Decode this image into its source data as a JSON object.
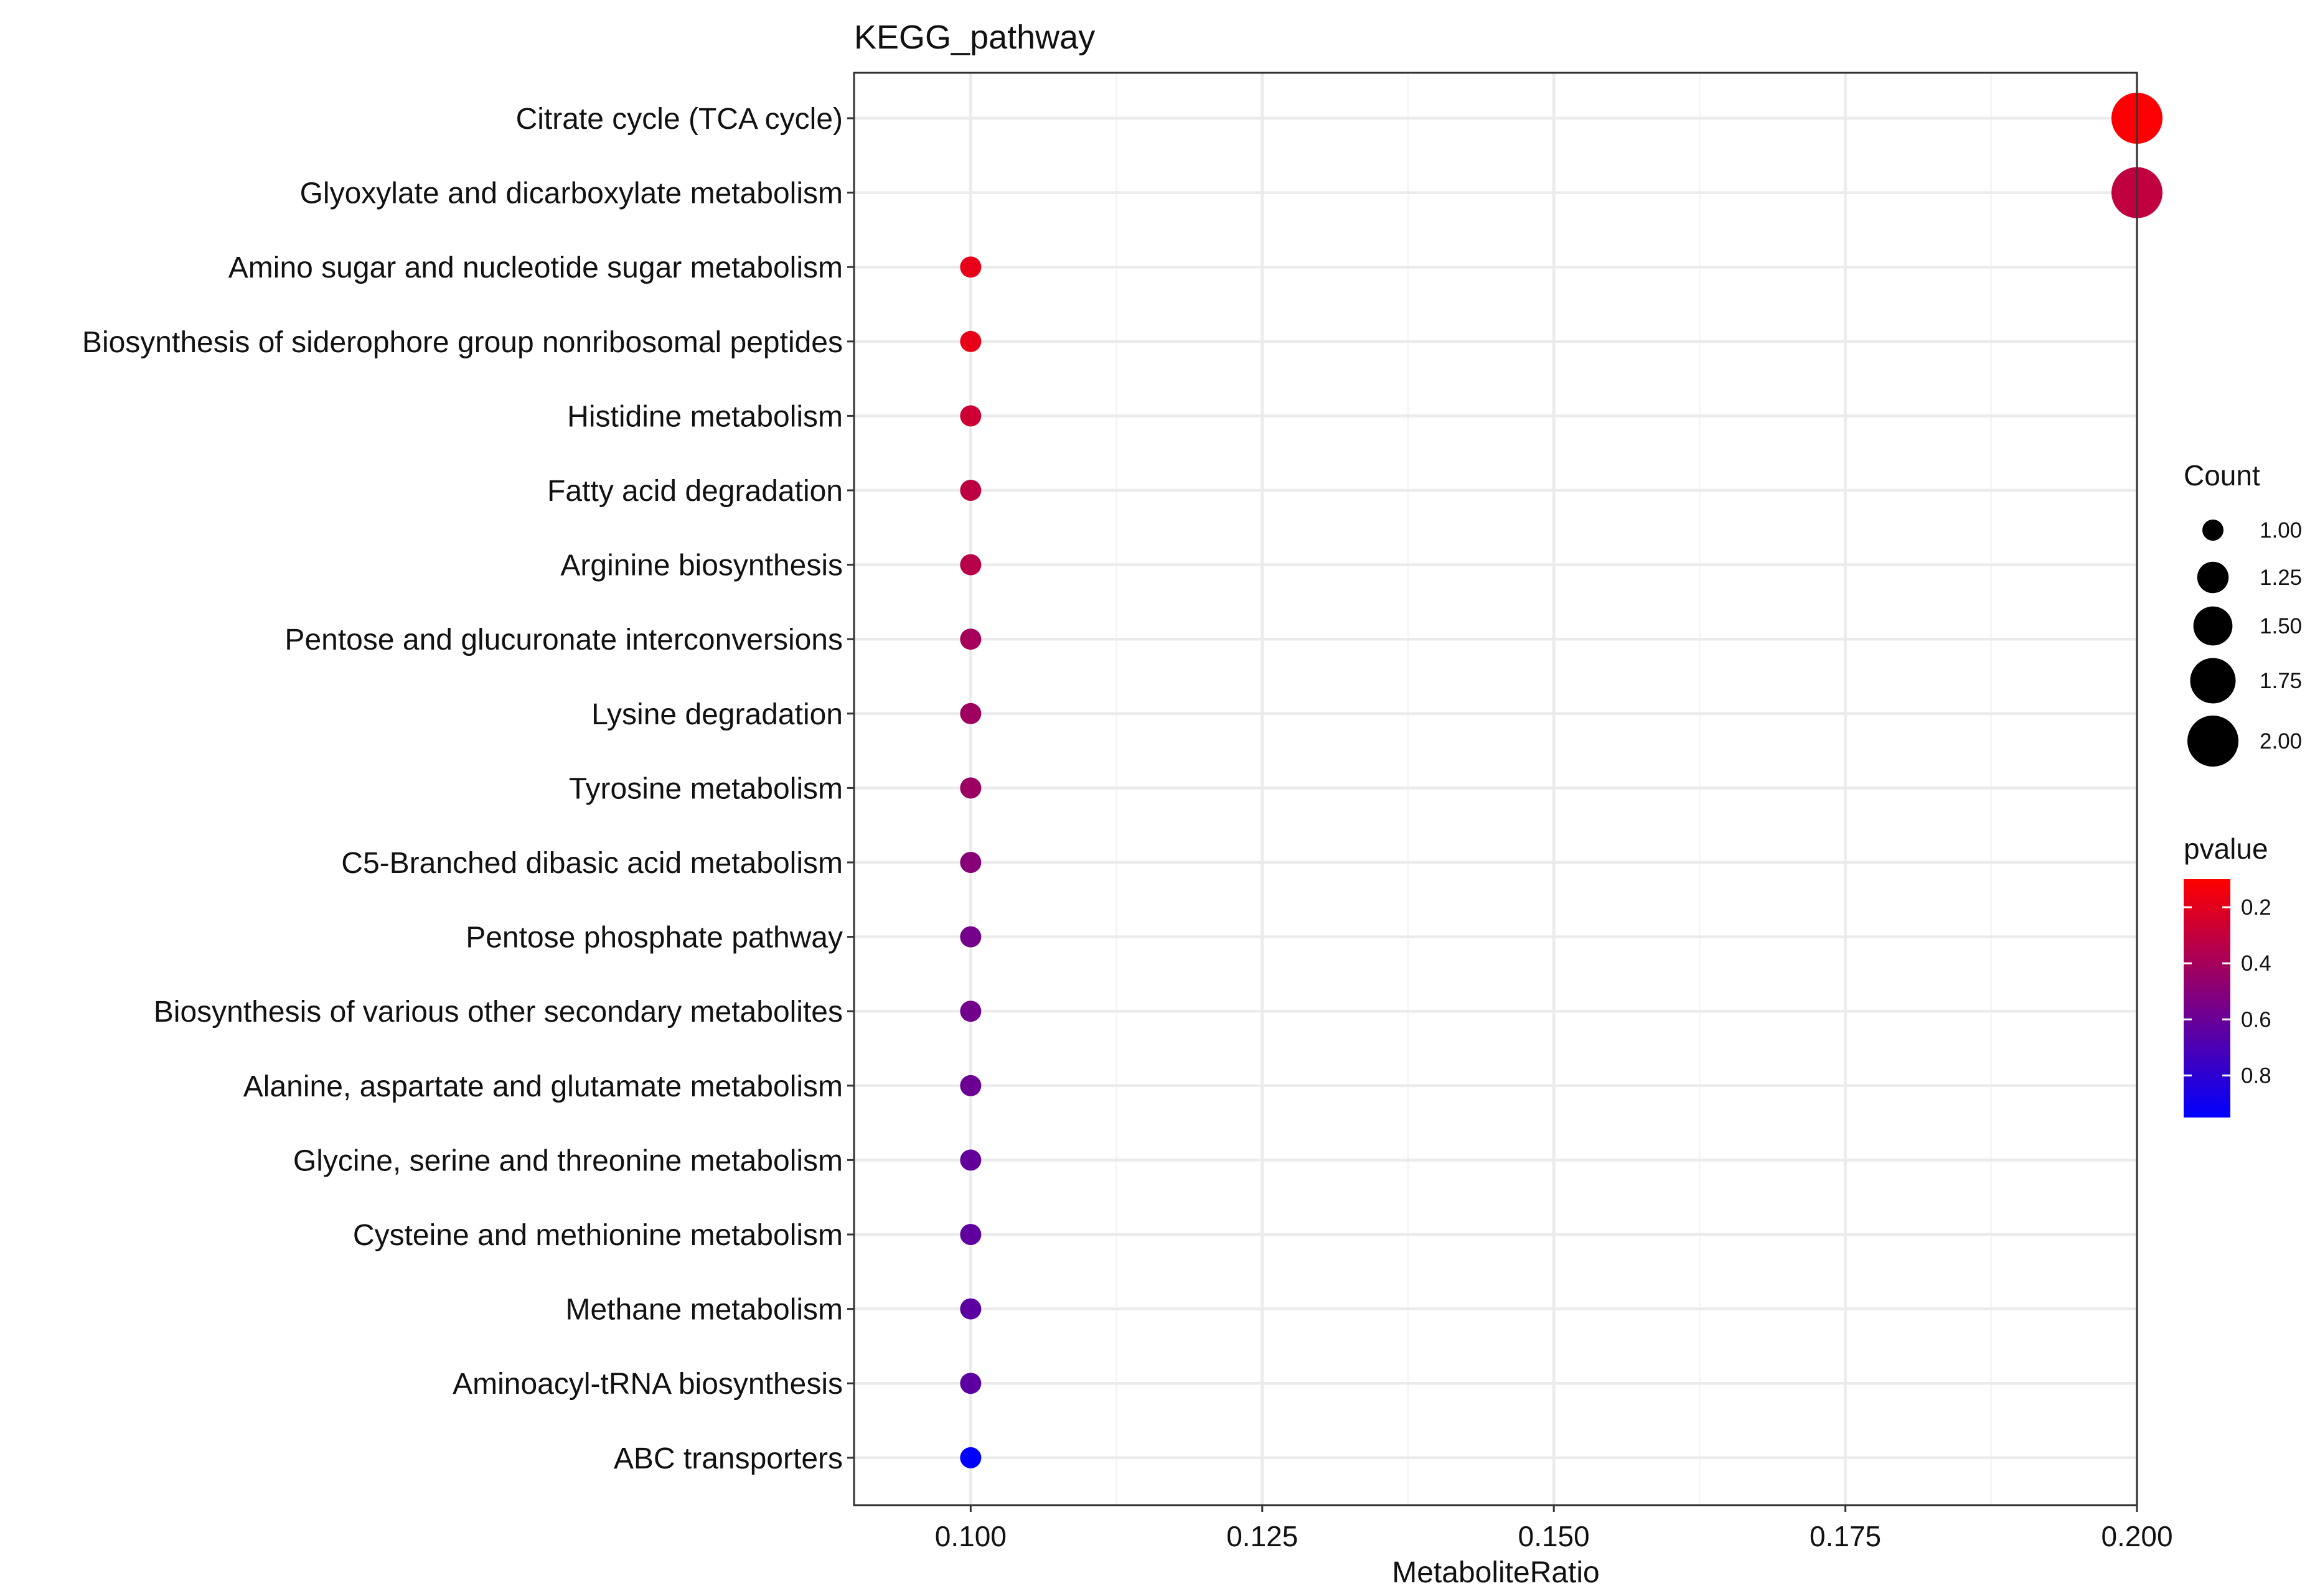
{
  "chart_data": {
    "type": "scatter",
    "title": "KEGG_pathway",
    "xlabel": "MetaboliteRatio",
    "ylabel": "",
    "xlim": [
      0.09,
      0.2
    ],
    "x_ticks": [
      0.1,
      0.125,
      0.15,
      0.175,
      0.2
    ],
    "x_tick_labels": [
      "0.100",
      "0.125",
      "0.150",
      "0.175",
      "0.200"
    ],
    "grid": true,
    "points": [
      {
        "pathway": "Citrate cycle (TCA cycle)",
        "ratio": 0.2,
        "count": 2,
        "pvalue": 0.11
      },
      {
        "pathway": "Glyoxylate and dicarboxylate metabolism",
        "ratio": 0.2,
        "count": 2,
        "pvalue": 0.31
      },
      {
        "pathway": "Amino sugar and nucleotide sugar metabolism",
        "ratio": 0.1,
        "count": 1,
        "pvalue": 0.18
      },
      {
        "pathway": "Biosynthesis of siderophore group nonribosomal peptides",
        "ratio": 0.1,
        "count": 1,
        "pvalue": 0.18
      },
      {
        "pathway": "Histidine metabolism",
        "ratio": 0.1,
        "count": 1,
        "pvalue": 0.27
      },
      {
        "pathway": "Fatty acid degradation",
        "ratio": 0.1,
        "count": 1,
        "pvalue": 0.32
      },
      {
        "pathway": "Arginine biosynthesis",
        "ratio": 0.1,
        "count": 1,
        "pvalue": 0.34
      },
      {
        "pathway": "Pentose and glucuronate interconversions",
        "ratio": 0.1,
        "count": 1,
        "pvalue": 0.4
      },
      {
        "pathway": "Lysine degradation",
        "ratio": 0.1,
        "count": 1,
        "pvalue": 0.42
      },
      {
        "pathway": "Tyrosine metabolism",
        "ratio": 0.1,
        "count": 1,
        "pvalue": 0.43
      },
      {
        "pathway": "C5-Branched dibasic acid metabolism",
        "ratio": 0.1,
        "count": 1,
        "pvalue": 0.5
      },
      {
        "pathway": "Pentose phosphate pathway",
        "ratio": 0.1,
        "count": 1,
        "pvalue": 0.56
      },
      {
        "pathway": "Biosynthesis of various other secondary metabolites",
        "ratio": 0.1,
        "count": 1,
        "pvalue": 0.57
      },
      {
        "pathway": "Alanine, aspartate and glutamate metabolism",
        "ratio": 0.1,
        "count": 1,
        "pvalue": 0.59
      },
      {
        "pathway": "Glycine, serine and threonine metabolism",
        "ratio": 0.1,
        "count": 1,
        "pvalue": 0.62
      },
      {
        "pathway": "Cysteine and methionine metabolism",
        "ratio": 0.1,
        "count": 1,
        "pvalue": 0.63
      },
      {
        "pathway": "Methane metabolism",
        "ratio": 0.1,
        "count": 1,
        "pvalue": 0.64
      },
      {
        "pathway": "Aminoacyl-tRNA biosynthesis",
        "ratio": 0.1,
        "count": 1,
        "pvalue": 0.64
      },
      {
        "pathway": "ABC transporters",
        "ratio": 0.1,
        "count": 1,
        "pvalue": 0.95
      }
    ],
    "legend_size": {
      "title": "Count",
      "values": [
        1.0,
        1.25,
        1.5,
        1.75,
        2.0
      ],
      "labels": [
        "1.00",
        "1.25",
        "1.50",
        "1.75",
        "2.00"
      ],
      "color": "#000000"
    },
    "legend_color": {
      "title": "pvalue",
      "range": [
        0.1,
        0.95
      ],
      "ticks": [
        0.2,
        0.4,
        0.6,
        0.8
      ],
      "tick_labels": [
        "0.2",
        "0.4",
        "0.6",
        "0.8"
      ],
      "low_color": "#ff0000",
      "high_color": "#0000ff"
    },
    "legend_position": "right"
  }
}
